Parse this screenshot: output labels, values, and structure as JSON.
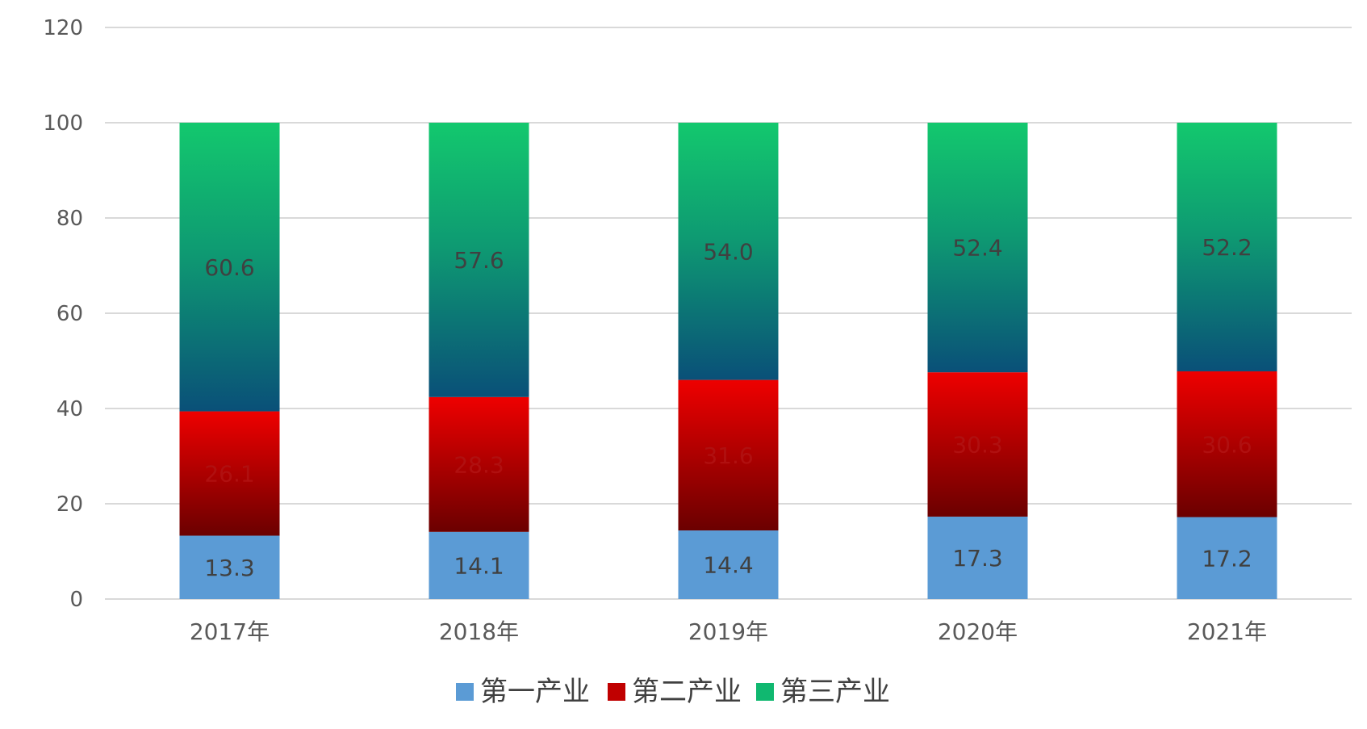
{
  "chart_data": {
    "type": "bar",
    "stacked": true,
    "categories": [
      "2017年",
      "2018年",
      "2019年",
      "2020年",
      "2021年"
    ],
    "series": [
      {
        "name": "第一产业",
        "values": [
          13.3,
          14.1,
          14.4,
          17.3,
          17.2
        ],
        "color": "#5b9bd5"
      },
      {
        "name": "第二产业",
        "values": [
          26.1,
          28.3,
          31.6,
          30.3,
          30.6
        ],
        "color_top": "#ee0000",
        "color_bottom": "#6b0000"
      },
      {
        "name": "第三产业",
        "values": [
          60.6,
          57.6,
          54.0,
          52.4,
          52.2
        ],
        "color_top": "#13c86e",
        "color_bottom": "#0a5078"
      }
    ],
    "y_ticks": [
      "0",
      "20",
      "40",
      "60",
      "80",
      "100",
      "120"
    ],
    "ylim": [
      0,
      120
    ],
    "grid": true,
    "legend_position": "bottom",
    "label_colors": [
      "#404040",
      "#b01010",
      "#404040"
    ]
  }
}
